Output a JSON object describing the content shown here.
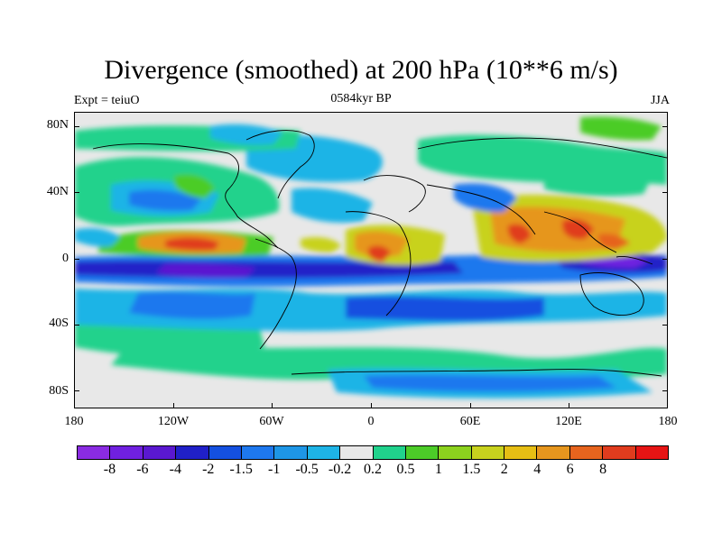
{
  "title": "Divergence (smoothed) at 200 hPa (10**6 m/s)",
  "left_label": "Expt = teiuO",
  "center_label": "0584kyr BP",
  "right_label": "JJA",
  "lat_labels": [
    "80N",
    "40N",
    "0",
    "40S",
    "80S"
  ],
  "lon_labels": [
    "180",
    "120W",
    "60W",
    "0",
    "60E",
    "120E",
    "180"
  ],
  "colorbar": {
    "colors": [
      "#8a2be2",
      "#7020e0",
      "#5a18d0",
      "#2020c8",
      "#1450e0",
      "#1e78ee",
      "#1e96e6",
      "#1eb4e6",
      "#e8e8e8",
      "#20d28c",
      "#4ccc28",
      "#8cd21e",
      "#c8d21e",
      "#e6be14",
      "#e6961e",
      "#e6641e",
      "#e03c1e",
      "#e61414"
    ],
    "labels": [
      "-8",
      "-6",
      "-4",
      "-2",
      "-1.5",
      "-1",
      "-0.5",
      "-0.2",
      "0.2",
      "0.5",
      "1",
      "1.5",
      "2",
      "4",
      "6",
      "8"
    ]
  }
}
